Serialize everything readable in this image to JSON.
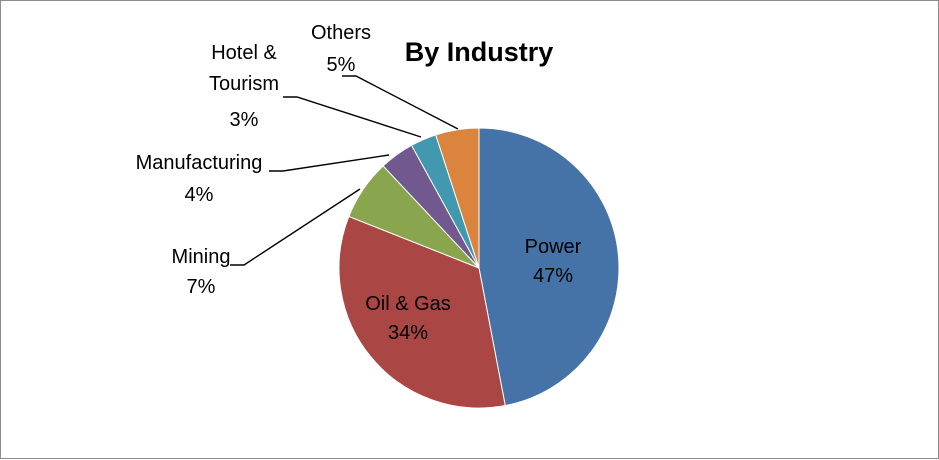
{
  "chart_data": {
    "type": "pie",
    "title": "By Industry",
    "legend": "none",
    "slices": [
      {
        "label": "Power",
        "percent_label": "47%",
        "value": 47,
        "color": "#4572a7"
      },
      {
        "label": "Oil & Gas",
        "percent_label": "34%",
        "value": 34,
        "color": "#aa4643"
      },
      {
        "label": "Mining",
        "percent_label": "7%",
        "value": 7,
        "color": "#89a54e"
      },
      {
        "label": "Manufacturing",
        "percent_label": "4%",
        "value": 4,
        "color": "#71588f"
      },
      {
        "label": "Hotel & Tourism",
        "percent_label": "3%",
        "value": 3,
        "color": "#4198af"
      },
      {
        "label": "Others",
        "percent_label": "5%",
        "value": 5,
        "color": "#db843d"
      }
    ]
  }
}
